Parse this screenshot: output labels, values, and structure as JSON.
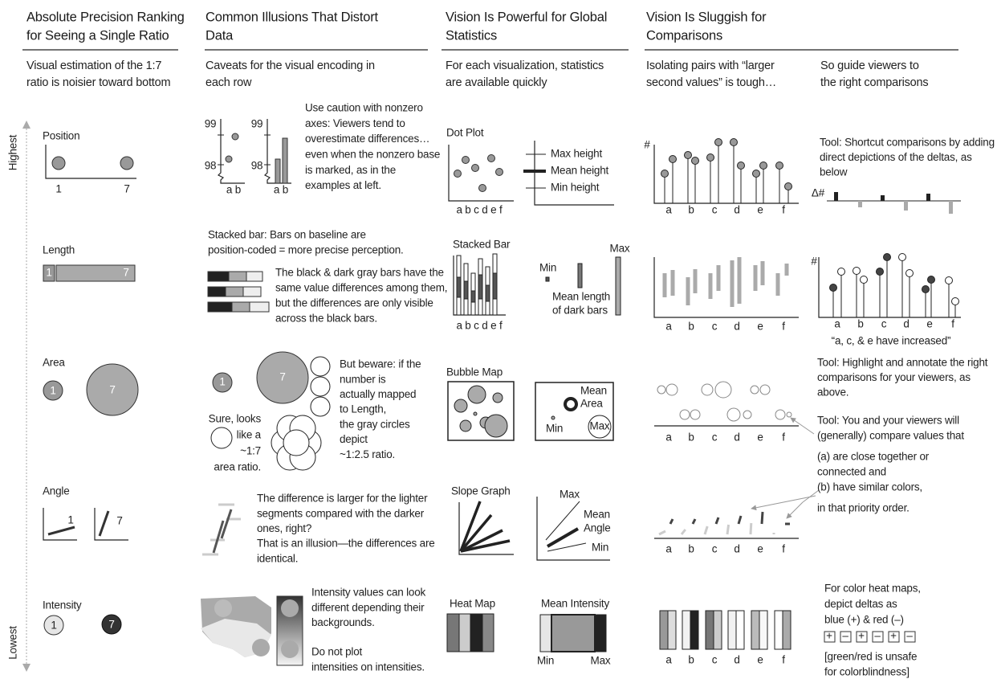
{
  "columns": [
    {
      "title": [
        "Absolute Precision Ranking",
        "for Seeing a Single Ratio"
      ],
      "subtitle": [
        "Visual estimation of the 1:7",
        "ratio is noisier toward bottom"
      ]
    },
    {
      "title": [
        "Common Illusions That Distort",
        "Data"
      ],
      "subtitle": [
        "Caveats for the visual encoding in",
        "each row"
      ]
    },
    {
      "title": [
        "Vision Is Powerful for Global",
        "Statistics"
      ],
      "subtitle": [
        "For each visualization, statistics",
        "are available quickly"
      ]
    },
    {
      "title": [
        "Vision Is Sluggish for",
        "Comparisons"
      ],
      "subtitle": [
        "Isolating pairs with “larger",
        "second values” is tough…"
      ],
      "subtitle_right": [
        "So guide viewers to",
        "the right comparisons"
      ]
    }
  ],
  "scale": {
    "top": "Highest",
    "bottom": "Lowest"
  },
  "ranking": [
    {
      "label": "Position",
      "small": "1",
      "large": "7"
    },
    {
      "label": "Length",
      "small": "1",
      "large": "7"
    },
    {
      "label": "Area",
      "small": "1",
      "large": "7"
    },
    {
      "label": "Angle",
      "small": "1",
      "large": "7"
    },
    {
      "label": "Intensity",
      "small": "1",
      "large": "7"
    }
  ],
  "illusions": {
    "position": {
      "tick_high": "99",
      "tick_low": "98",
      "axis": "a b",
      "note": [
        "Use caution with nonzero",
        "axes: Viewers tend to",
        "overestimate differences…",
        "even when the nonzero base",
        "is marked, as in the",
        "examples at left."
      ]
    },
    "length": {
      "intro": [
        "Stacked bar: Bars on baseline are",
        "position-coded = more precise perception."
      ],
      "note": [
        "The black & dark gray bars have the",
        "same value differences among them,",
        "but the differences are only visible",
        "across the black bars."
      ]
    },
    "area": {
      "small": "1",
      "large": "7",
      "left": [
        "Sure, looks",
        "like a",
        "~1:7",
        "area ratio."
      ],
      "right": [
        "But beware: if the",
        "number is",
        "actually mapped",
        "to Length,",
        "the gray circles",
        "depict",
        "~1:2.5 ratio."
      ]
    },
    "angle": {
      "note": [
        "The difference is larger for the lighter",
        "segments compared with the darker",
        "ones, right?",
        "That is an illusion—the differences are",
        "identical."
      ]
    },
    "intensity": {
      "note": [
        "Intensity values can look",
        "different depending their",
        "backgrounds."
      ],
      "warning": [
        "Do not plot",
        "intensities on intensities."
      ]
    }
  },
  "statistics": {
    "dot": {
      "title": "Dot Plot",
      "axis": "a b c d e f",
      "labels": [
        "Max height",
        "Mean height",
        "Min height"
      ]
    },
    "stacked": {
      "title": "Stacked Bar",
      "axis": "a b c d e f",
      "labels": [
        "Max",
        "Min",
        "Mean length",
        "of dark bars"
      ]
    },
    "bubble": {
      "title": "Bubble Map",
      "labels": [
        "Mean",
        "Area",
        "Min",
        "Max"
      ]
    },
    "slope": {
      "title": "Slope Graph",
      "labels": [
        "Max",
        "Mean",
        "Angle",
        "Min"
      ]
    },
    "heat": {
      "title": "Heat Map",
      "labels": [
        "Mean Intensity",
        "Min",
        "Max"
      ]
    }
  },
  "comparisons": {
    "y_symbol": "#",
    "delta_symbol": "Δ#",
    "categories": [
      "a",
      "b",
      "c",
      "d",
      "e",
      "f"
    ],
    "shortcut": [
      "Tool: Shortcut comparisons by adding",
      "direct depictions of the deltas, as",
      "below"
    ],
    "increased": "“a, c, & e have increased”",
    "highlight": [
      "Tool: Highlight and annotate the right",
      "comparisons for your viewers, as",
      "above."
    ],
    "proximity": [
      "Tool: You and your viewers will",
      "(generally) compare values that"
    ],
    "criteria": [
      "(a) are close together or",
      "connected and",
      "(b) have similar colors,",
      "in that priority order."
    ],
    "heat": [
      "For color heat maps,",
      "depict deltas as",
      "blue (+) & red (–)"
    ],
    "signs": [
      "+",
      "–",
      "+",
      "–",
      "+",
      "–"
    ],
    "warning": [
      "[green/red is unsafe",
      "for colorblindness]"
    ]
  }
}
